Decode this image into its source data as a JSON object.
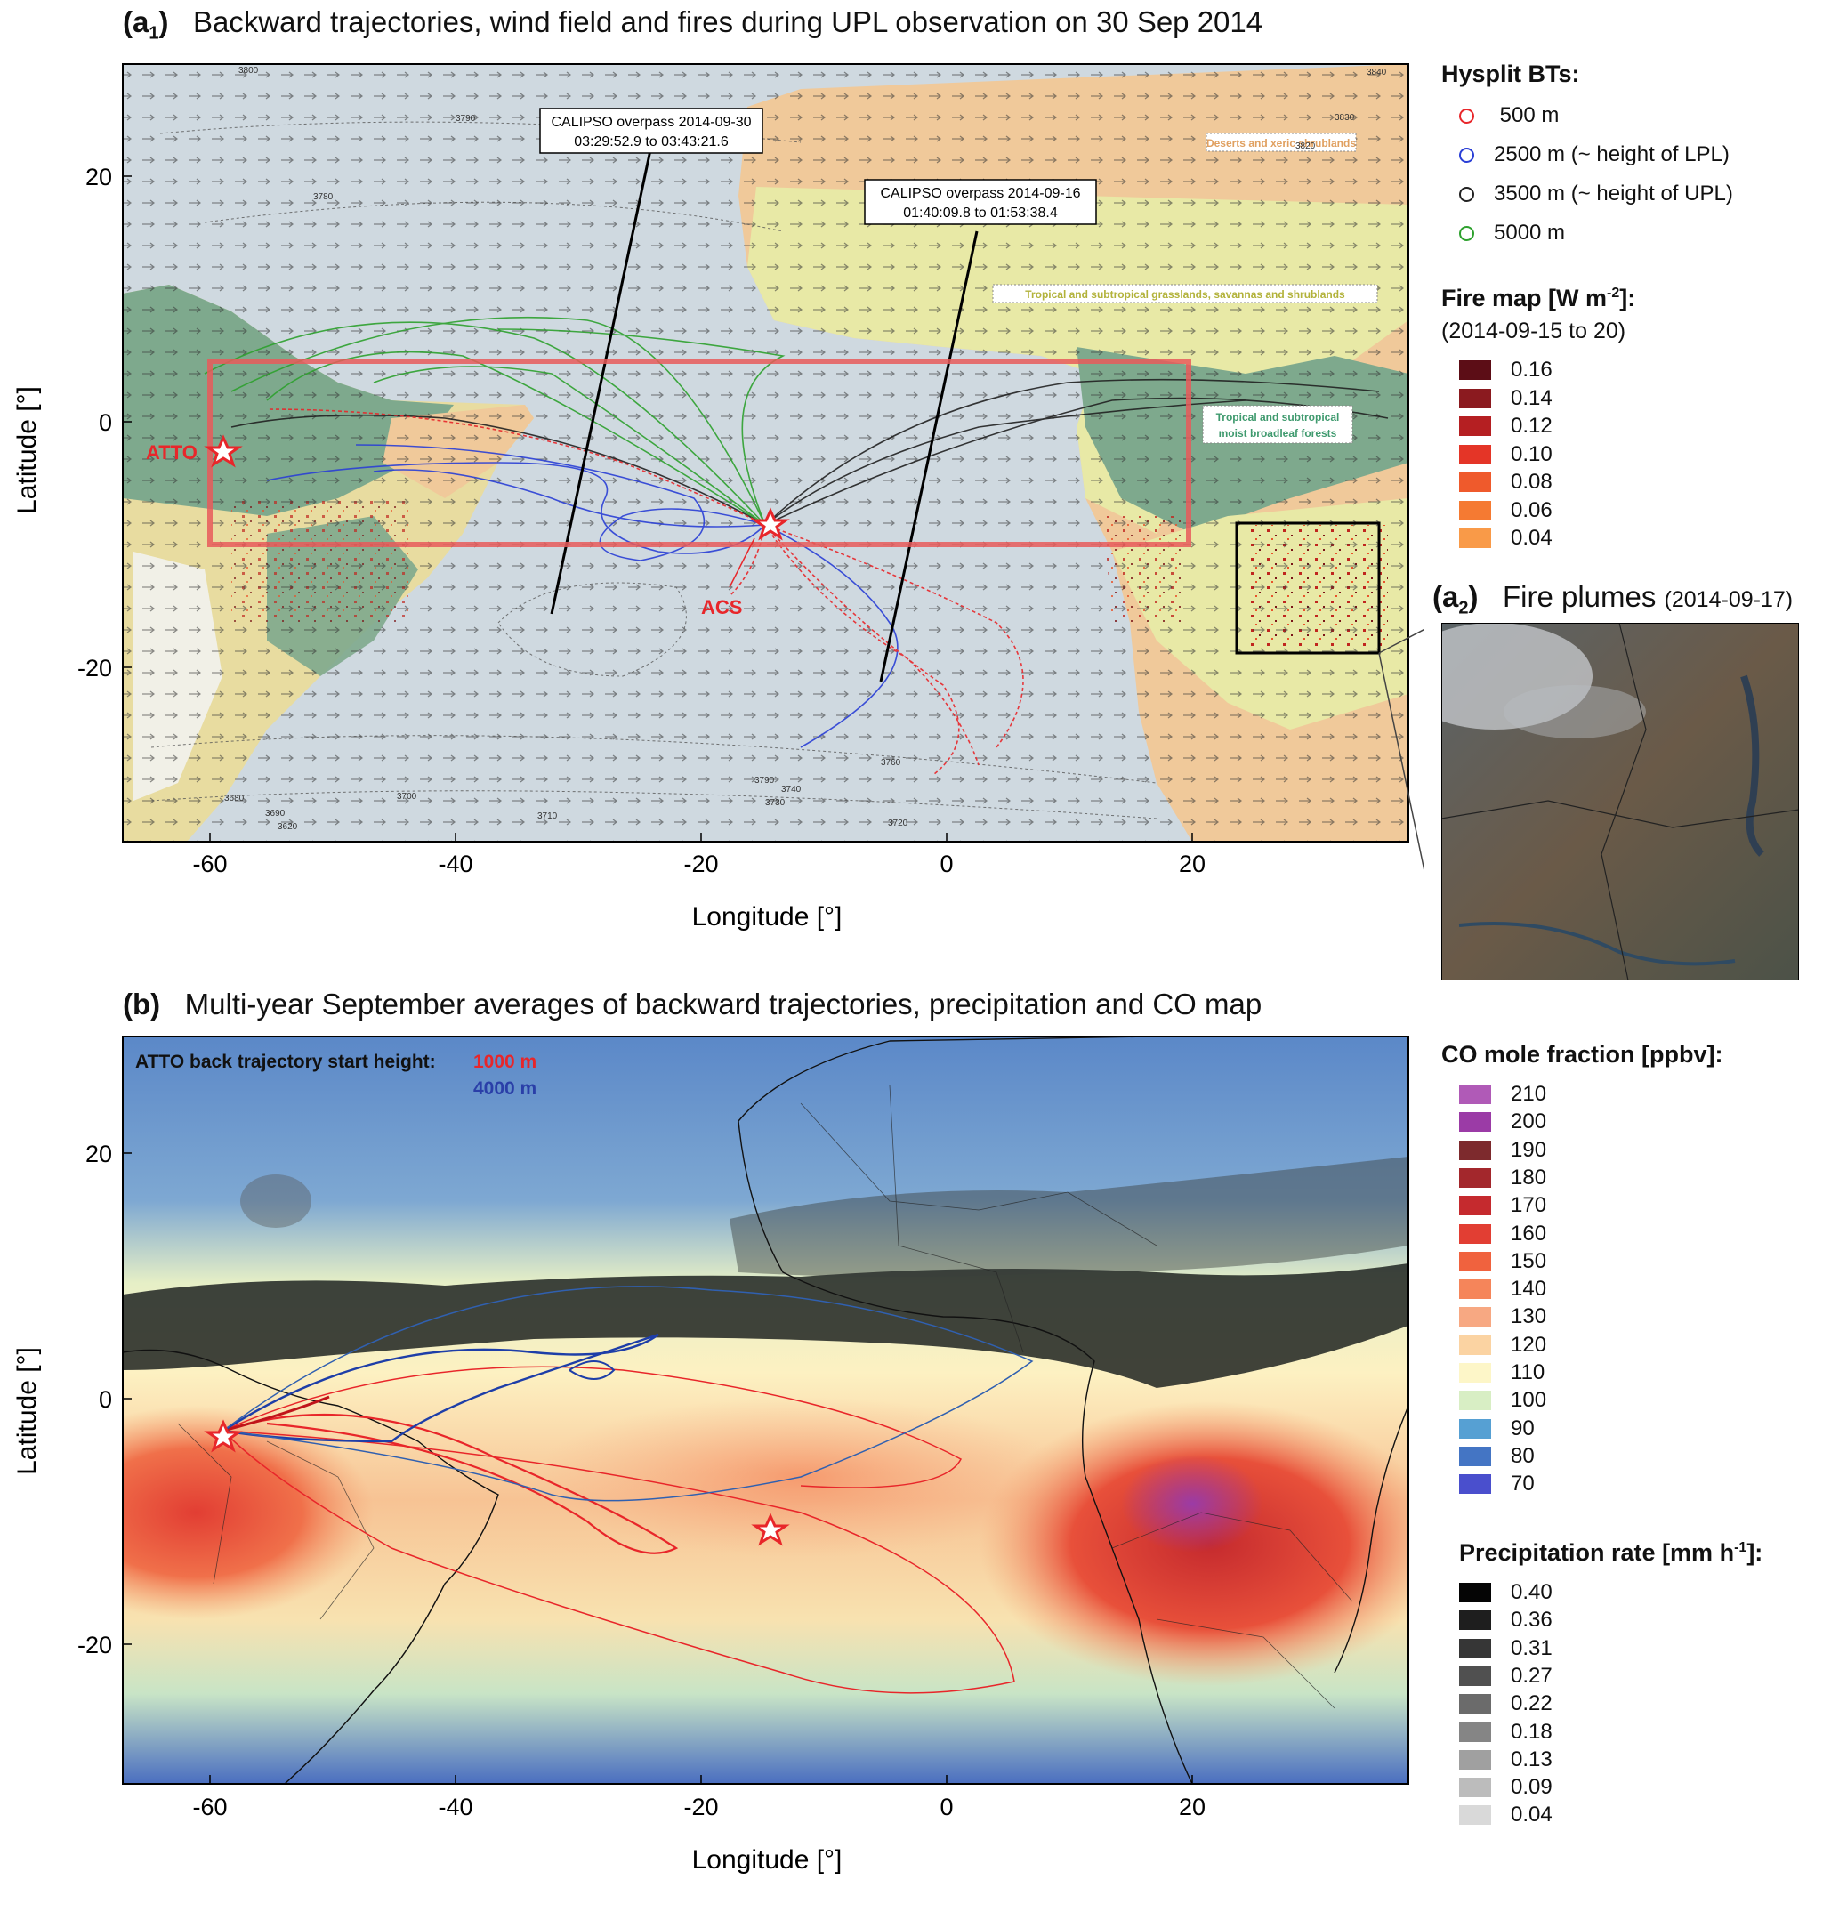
{
  "panel_a1": {
    "label": "(a",
    "label_sub": "1",
    "label_close": ")",
    "title": "Backward trajectories, wind field and  fires during UPL observation on 30 Sep 2014",
    "ylabel": "Latitude [°]",
    "xlabel": "Longitude [°]",
    "x_ticks": [
      "-60",
      "-40",
      "-20",
      "0",
      "20"
    ],
    "y_ticks": [
      "20",
      "0",
      "-20"
    ],
    "site_atto": "ATTO",
    "site_acs": "ACS",
    "calipso1": {
      "line1": "CALIPSO overpass 2014-09-30",
      "line2": "03:29:52.9 to 03:43:21.6"
    },
    "calipso2": {
      "line1": "CALIPSO overpass 2014-09-16",
      "line2": "01:40:09.8 to 01:53:38.4"
    },
    "biome_desert": "Deserts and xeric shrublands",
    "biome_grass": "Tropical and subtropical grasslands, savannas and shrublands",
    "biome_forest1": "Tropical and subtropical",
    "biome_forest2": "moist broadleaf forests",
    "contours": [
      "3800",
      "3790",
      "3780",
      "3840",
      "3830",
      "3820",
      "3760",
      "3790",
      "3740",
      "3730",
      "3700",
      "3710",
      "3720",
      "3690",
      "3620",
      "3680"
    ]
  },
  "panel_a2": {
    "label": "(a",
    "label_sub": "2",
    "label_close": ")",
    "title": "Fire plumes",
    "date": "(2014-09-17)"
  },
  "panel_b": {
    "label": "(b)",
    "title": "Multi-year September averages of backward trajectories, precipitation and CO map",
    "ylabel": "Latitude [°]",
    "xlabel": "Longitude [°]",
    "x_ticks": [
      "-60",
      "-40",
      "-20",
      "0",
      "20"
    ],
    "y_ticks": [
      "20",
      "0",
      "-20"
    ],
    "start_height_label": "ATTO back trajectory start height:",
    "height_1000": "1000 m",
    "height_4000": "4000 m"
  },
  "legend_bt": {
    "title": "Hysplit BTs:",
    "items": [
      {
        "label": " 500 m",
        "color": "#e8262a"
      },
      {
        "label": "2500 m (~ height of LPL)",
        "color": "#2a3fd6"
      },
      {
        "label": "3500 m (~ height of UPL)",
        "color": "#222222"
      },
      {
        "label": "5000 m",
        "color": "#2ea12e"
      }
    ]
  },
  "legend_fire": {
    "title_pre": "Fire map [W m",
    "title_sup": "-2",
    "title_post": "]:",
    "period": "(2014-09-15 to 20)",
    "items": [
      {
        "label": "0.16",
        "color": "#5c0d16"
      },
      {
        "label": "0.14",
        "color": "#8b1a1f"
      },
      {
        "label": "0.12",
        "color": "#b51f22"
      },
      {
        "label": "0.10",
        "color": "#e43527"
      },
      {
        "label": "0.08",
        "color": "#ef5a2c"
      },
      {
        "label": "0.06",
        "color": "#f57a32"
      },
      {
        "label": "0.04",
        "color": "#f99a48"
      }
    ]
  },
  "legend_co": {
    "title": "CO mole fraction [ppbv]:",
    "items": [
      {
        "label": "210",
        "color": "#b05ab7"
      },
      {
        "label": "200",
        "color": "#9b3ba6"
      },
      {
        "label": "190",
        "color": "#7d2a2d"
      },
      {
        "label": "180",
        "color": "#a3272c"
      },
      {
        "label": "170",
        "color": "#c52a2e"
      },
      {
        "label": "160",
        "color": "#e23e33"
      },
      {
        "label": "150",
        "color": "#f0623e"
      },
      {
        "label": "140",
        "color": "#f5855a"
      },
      {
        "label": "130",
        "color": "#f7a882"
      },
      {
        "label": "120",
        "color": "#fbd3a2"
      },
      {
        "label": "110",
        "color": "#fdf6c8"
      },
      {
        "label": "100",
        "color": "#d8eec4"
      },
      {
        "label": "90",
        "color": "#56a0d3"
      },
      {
        "label": "80",
        "color": "#4475c4"
      },
      {
        "label": "70",
        "color": "#4a4fcd"
      }
    ]
  },
  "legend_precip": {
    "title_pre": "Precipitation rate [mm h",
    "title_sup": "-1",
    "title_post": "]:",
    "items": [
      {
        "label": "0.40",
        "color": "#050505"
      },
      {
        "label": "0.36",
        "color": "#1e1e1e"
      },
      {
        "label": "0.31",
        "color": "#363636"
      },
      {
        "label": "0.27",
        "color": "#505050"
      },
      {
        "label": "0.22",
        "color": "#6b6b6b"
      },
      {
        "label": "0.18",
        "color": "#858585"
      },
      {
        "label": "0.13",
        "color": "#a0a0a0"
      },
      {
        "label": "0.09",
        "color": "#bcbcbc"
      },
      {
        "label": "0.04",
        "color": "#d9d9d9"
      }
    ]
  }
}
